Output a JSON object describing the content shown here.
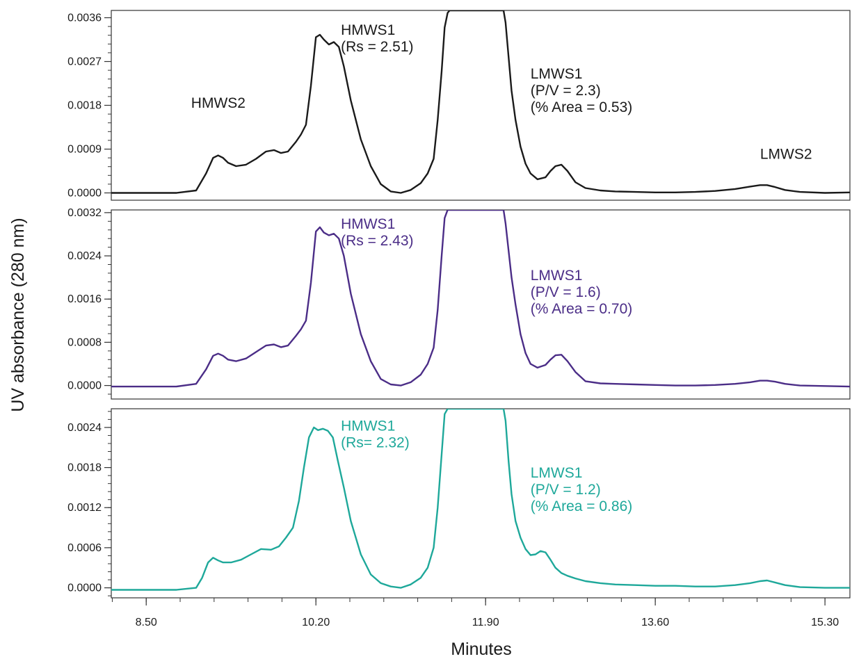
{
  "chart_data": {
    "type": "line",
    "xlabel": "Minutes",
    "ylabel": "UV absorbance (280 nm)",
    "xlim": [
      8.15,
      15.55
    ],
    "x_ticks": [
      "8.50",
      "10.20",
      "11.90",
      "13.60",
      "15.30"
    ],
    "x_tick_values": [
      8.5,
      10.2,
      11.9,
      13.6,
      15.3
    ],
    "grid": false,
    "panels": [
      {
        "color": "#1a1a1a",
        "ylim": [
          -0.00015,
          0.00375
        ],
        "y_ticks": [
          "0.0000",
          "0.0009",
          "0.0018",
          "0.0027",
          "0.0036"
        ],
        "y_tick_values": [
          0,
          0.0009,
          0.0018,
          0.0027,
          0.0036
        ],
        "annotations": [
          {
            "lines": [
              "HMWS2"
            ],
            "x": 8.95,
            "y": 0.00175
          },
          {
            "lines": [
              "HMWS1",
              "(Rs = 2.51)"
            ],
            "x": 10.45,
            "y": 0.00325
          },
          {
            "lines": [
              "LMWS1",
              "(P/V = 2.3)",
              "(% Area = 0.53)"
            ],
            "x": 12.35,
            "y": 0.00235
          },
          {
            "lines": [
              "LMWS2"
            ],
            "x": 14.65,
            "y": 0.0007
          }
        ],
        "series": [
          {
            "x": [
              8.15,
              8.5,
              8.8,
              9.0,
              9.1,
              9.17,
              9.22,
              9.27,
              9.32,
              9.4,
              9.5,
              9.6,
              9.7,
              9.78,
              9.85,
              9.92,
              10.0,
              10.05,
              10.1,
              10.15,
              10.2,
              10.24,
              10.28,
              10.33,
              10.38,
              10.43,
              10.48,
              10.55,
              10.65,
              10.75,
              10.85,
              10.95,
              11.05,
              11.15,
              11.25,
              11.32,
              11.38,
              11.42,
              11.46,
              11.49,
              11.52,
              11.54,
              12.08,
              12.1,
              12.13,
              12.16,
              12.2,
              12.25,
              12.3,
              12.35,
              12.42,
              12.5,
              12.55,
              12.6,
              12.66,
              12.72,
              12.8,
              12.9,
              13.05,
              13.2,
              13.4,
              13.6,
              13.8,
              14.0,
              14.2,
              14.4,
              14.55,
              14.65,
              14.72,
              14.8,
              14.9,
              15.05,
              15.3,
              15.55
            ],
            "y": [
              0.0,
              0.0,
              0.0,
              5e-05,
              0.0004,
              0.00072,
              0.00077,
              0.00072,
              0.00062,
              0.00055,
              0.00058,
              0.0007,
              0.00085,
              0.00088,
              0.00082,
              0.00085,
              0.00105,
              0.0012,
              0.0014,
              0.0022,
              0.0032,
              0.00325,
              0.00315,
              0.00305,
              0.0031,
              0.003,
              0.0026,
              0.0019,
              0.0011,
              0.00055,
              0.00018,
              3e-05,
              0.0,
              6e-05,
              0.0002,
              0.0004,
              0.0007,
              0.0015,
              0.0025,
              0.0034,
              0.0037,
              0.00375,
              0.00375,
              0.0035,
              0.0028,
              0.0021,
              0.0015,
              0.00095,
              0.0006,
              0.0004,
              0.00028,
              0.00032,
              0.00045,
              0.00055,
              0.00058,
              0.00045,
              0.00022,
              0.0001,
              5e-05,
              3e-05,
              2e-05,
              1e-05,
              1e-05,
              2e-05,
              4e-05,
              8e-05,
              0.00013,
              0.00016,
              0.00016,
              0.00012,
              6e-05,
              2e-05,
              0.0,
              1e-05
            ]
          }
        ]
      },
      {
        "color": "#4b2d87",
        "ylim": [
          -0.00025,
          0.00325
        ],
        "y_ticks": [
          "0.0000",
          "0.0008",
          "0.0016",
          "0.0024",
          "0.0032"
        ],
        "y_tick_values": [
          0,
          0.0008,
          0.0016,
          0.0024,
          0.0032
        ],
        "annotations": [
          {
            "lines": [
              "HMWS1",
              "(Rs = 2.43)"
            ],
            "x": 10.45,
            "y": 0.0029
          },
          {
            "lines": [
              "LMWS1",
              "(P/V = 1.6)",
              "(% Area = 0.70)"
            ],
            "x": 12.35,
            "y": 0.00195
          }
        ],
        "series": [
          {
            "x": [
              8.15,
              8.5,
              8.8,
              9.0,
              9.1,
              9.17,
              9.22,
              9.27,
              9.32,
              9.4,
              9.5,
              9.6,
              9.7,
              9.78,
              9.85,
              9.92,
              10.0,
              10.05,
              10.1,
              10.15,
              10.2,
              10.24,
              10.28,
              10.33,
              10.38,
              10.43,
              10.48,
              10.55,
              10.65,
              10.75,
              10.85,
              10.95,
              11.05,
              11.15,
              11.25,
              11.32,
              11.38,
              11.42,
              11.46,
              11.49,
              11.52,
              11.54,
              12.08,
              12.1,
              12.13,
              12.16,
              12.2,
              12.25,
              12.3,
              12.35,
              12.42,
              12.5,
              12.55,
              12.6,
              12.66,
              12.72,
              12.8,
              12.9,
              13.05,
              13.2,
              13.4,
              13.6,
              13.8,
              14.0,
              14.2,
              14.4,
              14.55,
              14.65,
              14.72,
              14.8,
              14.9,
              15.05,
              15.3,
              15.55
            ],
            "y": [
              -2e-05,
              -2e-05,
              -2e-05,
              3e-05,
              0.0003,
              0.00055,
              0.00059,
              0.00055,
              0.00048,
              0.00045,
              0.0005,
              0.00062,
              0.00074,
              0.00076,
              0.00071,
              0.00074,
              0.00092,
              0.00104,
              0.0012,
              0.0019,
              0.00285,
              0.00293,
              0.00283,
              0.00278,
              0.00281,
              0.00272,
              0.0024,
              0.0017,
              0.00095,
              0.00045,
              0.00012,
              2e-05,
              0.0,
              6e-05,
              0.0002,
              0.0004,
              0.0007,
              0.0014,
              0.0024,
              0.0031,
              0.00325,
              0.00325,
              0.00325,
              0.003,
              0.0025,
              0.002,
              0.0015,
              0.00095,
              0.0006,
              0.0004,
              0.00033,
              0.00038,
              0.00048,
              0.00056,
              0.00057,
              0.00045,
              0.00025,
              8e-05,
              4e-05,
              3e-05,
              2e-05,
              1e-05,
              0.0,
              0.0,
              1e-05,
              3e-05,
              6e-05,
              9e-05,
              9e-05,
              7e-05,
              3e-05,
              0.0,
              -1e-05,
              -2e-05
            ]
          }
        ]
      },
      {
        "color": "#1ea89a",
        "ylim": [
          -0.00015,
          0.00268
        ],
        "y_ticks": [
          "0.0000",
          "0.0006",
          "0.0012",
          "0.0018",
          "0.0024"
        ],
        "y_tick_values": [
          0,
          0.0006,
          0.0012,
          0.0018,
          0.0024
        ],
        "annotations": [
          {
            "lines": [
              "HMWS1",
              "(Rs= 2.32)"
            ],
            "x": 10.45,
            "y": 0.00235
          },
          {
            "lines": [
              "LMWS1",
              "(P/V = 1.2)",
              "(% Area = 0.86)"
            ],
            "x": 12.35,
            "y": 0.00165
          }
        ],
        "series": [
          {
            "x": [
              8.15,
              8.5,
              8.8,
              9.0,
              9.06,
              9.12,
              9.17,
              9.22,
              9.27,
              9.35,
              9.45,
              9.55,
              9.65,
              9.75,
              9.83,
              9.9,
              9.97,
              10.03,
              10.08,
              10.13,
              10.18,
              10.22,
              10.27,
              10.32,
              10.37,
              10.42,
              10.48,
              10.55,
              10.65,
              10.75,
              10.85,
              10.95,
              11.05,
              11.15,
              11.25,
              11.32,
              11.38,
              11.42,
              11.46,
              11.49,
              11.52,
              11.54,
              12.08,
              12.1,
              12.13,
              12.16,
              12.2,
              12.25,
              12.3,
              12.35,
              12.4,
              12.45,
              12.5,
              12.55,
              12.6,
              12.66,
              12.72,
              12.8,
              12.9,
              13.05,
              13.2,
              13.4,
              13.6,
              13.8,
              14.0,
              14.2,
              14.4,
              14.55,
              14.65,
              14.72,
              14.8,
              14.9,
              15.05,
              15.3,
              15.55
            ],
            "y": [
              -3e-05,
              -3e-05,
              -3e-05,
              0.0,
              0.00015,
              0.00038,
              0.00045,
              0.00041,
              0.00038,
              0.00038,
              0.00042,
              0.0005,
              0.00058,
              0.00057,
              0.00062,
              0.00075,
              0.0009,
              0.0013,
              0.0018,
              0.00225,
              0.0024,
              0.00236,
              0.00238,
              0.00235,
              0.00225,
              0.0019,
              0.0015,
              0.001,
              0.0005,
              0.0002,
              7e-05,
              2e-05,
              0.0,
              5e-05,
              0.00015,
              0.0003,
              0.0006,
              0.0012,
              0.002,
              0.0026,
              0.00268,
              0.00268,
              0.00268,
              0.0025,
              0.0019,
              0.0014,
              0.001,
              0.00075,
              0.00058,
              0.00049,
              0.0005,
              0.00055,
              0.00053,
              0.00042,
              0.0003,
              0.00022,
              0.00018,
              0.00014,
              0.0001,
              7e-05,
              5e-05,
              4e-05,
              3e-05,
              3e-05,
              2e-05,
              2e-05,
              4e-05,
              7e-05,
              0.0001,
              0.00011,
              8e-05,
              4e-05,
              1e-05,
              0.0,
              0.0
            ]
          }
        ]
      }
    ]
  }
}
